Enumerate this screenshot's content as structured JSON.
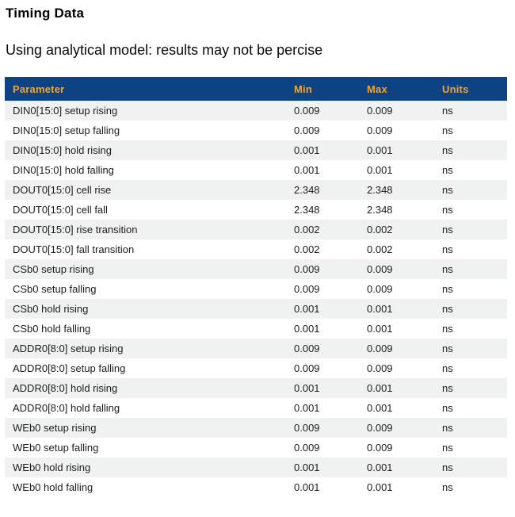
{
  "page": {
    "title": "Timing Data",
    "subtitle": "Using analytical model: results may not be percise"
  },
  "table": {
    "columns": [
      "Parameter",
      "Min",
      "Max",
      "Units"
    ],
    "rows": [
      [
        "DIN0[15:0] setup rising",
        "0.009",
        "0.009",
        "ns"
      ],
      [
        "DIN0[15:0] setup falling",
        "0.009",
        "0.009",
        "ns"
      ],
      [
        "DIN0[15:0] hold rising",
        "0.001",
        "0.001",
        "ns"
      ],
      [
        "DIN0[15:0] hold falling",
        "0.001",
        "0.001",
        "ns"
      ],
      [
        "DOUT0[15:0] cell rise",
        "2.348",
        "2.348",
        "ns"
      ],
      [
        "DOUT0[15:0] cell fall",
        "2.348",
        "2.348",
        "ns"
      ],
      [
        "DOUT0[15:0] rise transition",
        "0.002",
        "0.002",
        "ns"
      ],
      [
        "DOUT0[15:0] fall transition",
        "0.002",
        "0.002",
        "ns"
      ],
      [
        "CSb0 setup rising",
        "0.009",
        "0.009",
        "ns"
      ],
      [
        "CSb0 setup falling",
        "0.009",
        "0.009",
        "ns"
      ],
      [
        "CSb0 hold rising",
        "0.001",
        "0.001",
        "ns"
      ],
      [
        "CSb0 hold falling",
        "0.001",
        "0.001",
        "ns"
      ],
      [
        "ADDR0[8:0] setup rising",
        "0.009",
        "0.009",
        "ns"
      ],
      [
        "ADDR0[8:0] setup falling",
        "0.009",
        "0.009",
        "ns"
      ],
      [
        "ADDR0[8:0] hold rising",
        "0.001",
        "0.001",
        "ns"
      ],
      [
        "ADDR0[8:0] hold falling",
        "0.001",
        "0.001",
        "ns"
      ],
      [
        "WEb0 setup rising",
        "0.009",
        "0.009",
        "ns"
      ],
      [
        "WEb0 setup falling",
        "0.009",
        "0.009",
        "ns"
      ],
      [
        "WEb0 hold rising",
        "0.001",
        "0.001",
        "ns"
      ],
      [
        "WEb0 hold falling",
        "0.001",
        "0.001",
        "ns"
      ]
    ]
  },
  "colors": {
    "header_bg": "#0e4383",
    "header_text": "#f0a434",
    "stripe_bg": "#f0f1f1",
    "cell_text": "#1c1c1c"
  }
}
